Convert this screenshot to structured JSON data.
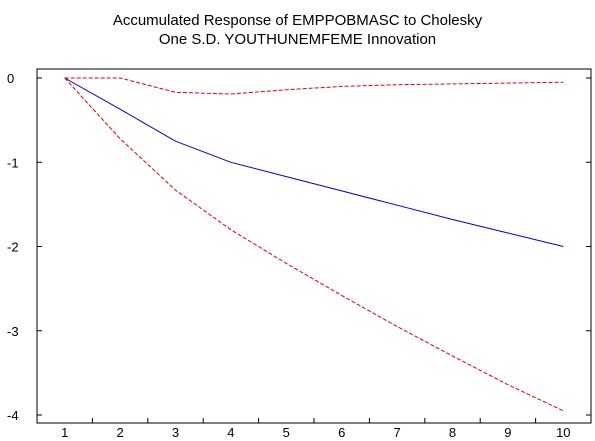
{
  "chart_data": {
    "type": "line",
    "title": "Accumulated Response of EMPPOBMASC to Cholesky",
    "subtitle": "One S.D. YOUTHUNEMFEME Innovation",
    "xlabel": "",
    "ylabel": "",
    "categories": [
      "1",
      "2",
      "3",
      "4",
      "5",
      "6",
      "7",
      "8",
      "9",
      "10"
    ],
    "x": [
      1,
      2,
      3,
      4,
      5,
      6,
      7,
      8,
      9,
      10
    ],
    "ylim": [
      -4,
      0
    ],
    "yticks": [
      0,
      -1,
      -2,
      -3,
      -4
    ],
    "yticklabels": [
      "0",
      "-1",
      "-2",
      "-3",
      "-4"
    ],
    "grid": false,
    "legend": "none",
    "series": [
      {
        "style": "solid",
        "color": "#0000cc",
        "values": [
          0.0,
          -0.37,
          -0.75,
          -1.0,
          -1.17,
          -1.34,
          -1.51,
          -1.68,
          -1.84,
          -2.0
        ]
      },
      {
        "style": "dashed",
        "color": "#dd0000",
        "values": [
          0.0,
          0.0,
          -0.17,
          -0.19,
          -0.14,
          -0.1,
          -0.08,
          -0.07,
          -0.06,
          -0.05
        ]
      },
      {
        "style": "dashed",
        "color": "#dd0000",
        "values": [
          0.0,
          -0.72,
          -1.33,
          -1.8,
          -2.2,
          -2.58,
          -2.95,
          -3.3,
          -3.64,
          -3.95
        ]
      }
    ]
  }
}
